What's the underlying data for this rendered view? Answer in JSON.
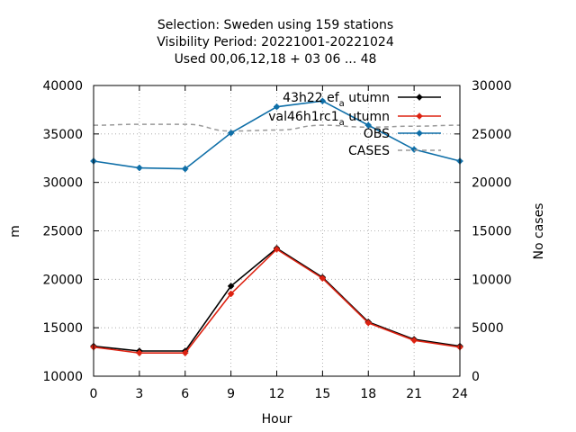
{
  "chart_data": {
    "type": "line",
    "title": [
      "Selection: Sweden using   159 stations",
      "Visibility   Period: 20221001-20221024",
      "Used  00,06,12,18  + 03 06 ... 48"
    ],
    "xlabel": "Hour",
    "ylabel": "m",
    "y2label": "No cases",
    "x": [
      0,
      3,
      6,
      9,
      12,
      15,
      18,
      21,
      24
    ],
    "xlim": [
      0,
      24
    ],
    "ylim": [
      10000,
      40000
    ],
    "y2lim": [
      0,
      30000
    ],
    "xticks": [
      "0",
      "3",
      "6",
      "9",
      "12",
      "15",
      "18",
      "21",
      "24"
    ],
    "yticks": [
      "10000",
      "15000",
      "20000",
      "25000",
      "30000",
      "35000",
      "40000"
    ],
    "y2ticks": [
      "0",
      "5000",
      "10000",
      "15000",
      "20000",
      "25000",
      "30000"
    ],
    "grid": true,
    "legend_position": "top-right",
    "series": [
      {
        "name": "43h22 ef_a utumn",
        "legend_main": "43h22 ef",
        "legend_sub": "a",
        "legend_tail": " utumn",
        "color": "#000000",
        "axis": "y",
        "style": "line-points",
        "values": [
          13100,
          12600,
          12600,
          19300,
          23200,
          20200,
          15600,
          13800,
          13100
        ]
      },
      {
        "name": "val46h1rc1_a utumn",
        "legend_main": "val46h1rc1",
        "legend_sub": "a",
        "legend_tail": " utumn",
        "color": "#dd2211",
        "axis": "y",
        "style": "line-points",
        "values": [
          13000,
          12400,
          12400,
          18500,
          23100,
          20100,
          15500,
          13700,
          13000
        ]
      },
      {
        "name": "OBS",
        "color": "#0f6fa8",
        "axis": "y",
        "style": "line-points",
        "values": [
          32200,
          31500,
          31400,
          35100,
          37800,
          38400,
          35900,
          33400,
          32200
        ]
      },
      {
        "name": "CASES",
        "color": "#999999",
        "axis": "y2",
        "style": "dashed",
        "values": [
          25900,
          26000,
          26000,
          25300,
          25400,
          25900,
          25700,
          25800,
          25900
        ]
      }
    ]
  }
}
